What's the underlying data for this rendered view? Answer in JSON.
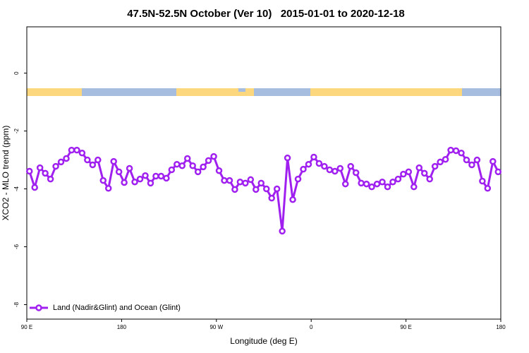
{
  "chart_data": {
    "type": "line",
    "title": "47.5N-52.5N October (Ver 10)   2015-01-01 to 2020-12-18",
    "xlabel": "Longitude (deg E)",
    "ylabel": "XCO2 - MLO trend (ppm)",
    "x": [
      92.5,
      97.5,
      102.5,
      107.5,
      112.5,
      117.5,
      122.5,
      127.5,
      132.5,
      137.5,
      142.5,
      147.5,
      152.5,
      157.5,
      162.5,
      167.5,
      172.5,
      177.5,
      182.5,
      187.5,
      192.5,
      197.5,
      202.5,
      207.5,
      212.5,
      217.5,
      222.5,
      227.5,
      232.5,
      237.5,
      242.5,
      247.5,
      252.5,
      257.5,
      262.5,
      267.5,
      272.5,
      277.5,
      282.5,
      287.5,
      292.5,
      297.5,
      302.5,
      307.5,
      312.5,
      317.5,
      322.5,
      327.5,
      332.5,
      337.5,
      342.5,
      347.5,
      352.5,
      357.5,
      362.5,
      367.5,
      372.5,
      377.5,
      382.5,
      387.5,
      392.5,
      397.5,
      402.5,
      407.5,
      412.5,
      417.5,
      422.5,
      427.5,
      432.5,
      437.5,
      442.5,
      447.5,
      452.5,
      457.5,
      462.5,
      467.5,
      472.5,
      477.5,
      482.5,
      487.5,
      492.5,
      497.5,
      502.5,
      507.5,
      512.5,
      517.5,
      522.5,
      527.5,
      532.5,
      537.5
    ],
    "series": [
      {
        "name": "Land (Nadir&Glint) and Ocean (Glint)",
        "color": "#a020f0",
        "values": [
          -3.39,
          -3.95,
          -3.27,
          -3.46,
          -3.66,
          -3.22,
          -3.07,
          -2.95,
          -2.66,
          -2.66,
          -2.76,
          -3.0,
          -3.17,
          -3.0,
          -3.71,
          -3.98,
          -3.05,
          -3.41,
          -3.78,
          -3.29,
          -3.76,
          -3.66,
          -3.54,
          -3.8,
          -3.56,
          -3.56,
          -3.63,
          -3.34,
          -3.15,
          -3.2,
          -2.95,
          -3.2,
          -3.41,
          -3.24,
          -3.02,
          -2.88,
          -3.37,
          -3.71,
          -3.71,
          -4.02,
          -3.76,
          -3.8,
          -3.68,
          -4.02,
          -3.8,
          -4.0,
          -4.32,
          -4.0,
          -5.46,
          -2.93,
          -4.37,
          -3.66,
          -3.32,
          -3.15,
          -2.9,
          -3.12,
          -3.22,
          -3.34,
          -3.39,
          -3.29,
          -3.83,
          -3.22,
          -3.44,
          -3.8,
          -3.83,
          -3.93,
          -3.83,
          -3.76,
          -3.93,
          -3.76,
          -3.66,
          -3.49,
          -3.41,
          -3.93,
          -3.27,
          -3.46,
          -3.66,
          -3.22,
          -3.07,
          -2.98,
          -2.66,
          -2.68,
          -2.76,
          -3.0,
          -3.17,
          -3.0,
          -3.73,
          -3.98,
          -3.05,
          -3.41
        ]
      }
    ],
    "xlim": [
      90,
      540
    ],
    "xticks": [
      {
        "value": 90,
        "label": "90 E"
      },
      180,
      {
        "value": 270,
        "label": "90 W"
      },
      {
        "value": 360,
        "label": "0"
      },
      {
        "value": 450,
        "label": "90 E"
      },
      {
        "value": 540,
        "label": "180"
      }
    ],
    "ylim": [
      -8.5,
      1.6
    ],
    "yticks": [
      0,
      -2,
      -4,
      -6,
      -8
    ],
    "legend": "bottom-left"
  }
}
